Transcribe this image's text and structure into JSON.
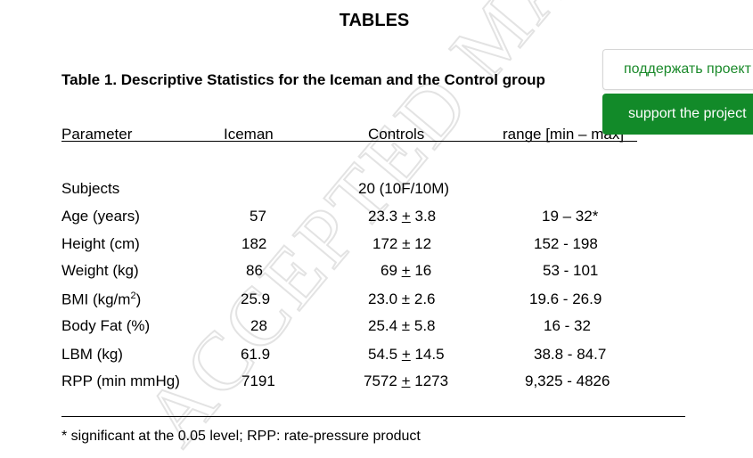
{
  "page": {
    "title": "TABLES",
    "caption": "Table 1. Descriptive Statistics for the Iceman and the Control group",
    "watermark": "ACCEPTED MANUSCRIPT",
    "footnote": "* significant at the 0.05 level; RPP: rate-pressure product"
  },
  "table": {
    "headers": {
      "parameter": "Parameter",
      "iceman": "Iceman",
      "controls": "Controls",
      "range": "range [min – max]"
    },
    "rows": [
      {
        "parameter": "Subjects",
        "iceman": "",
        "controls": "20 (10F/10M)",
        "range": ""
      },
      {
        "parameter": "Age (years)",
        "iceman": "57",
        "controls_mean": "23.3",
        "controls_pm": "+",
        "controls_sd": "3.8",
        "range": "19 – 32*"
      },
      {
        "parameter": "Height (cm)",
        "iceman": "182",
        "controls": "172 ± 12",
        "range": "152 - 198"
      },
      {
        "parameter": "Weight (kg)",
        "iceman": "86",
        "controls_mean": "69",
        "controls_pm": "+",
        "controls_sd": "16",
        "range": "53 - 101"
      },
      {
        "parameter": "BMI (kg/m",
        "parameter_sup": "2",
        "parameter_suffix": ")",
        "iceman": "25.9",
        "controls": "23.0 ± 2.6",
        "range": "19.6 - 26.9"
      },
      {
        "parameter": "Body Fat (%)",
        "iceman": "28",
        "controls": "25.4 ± 5.8",
        "range": "16 - 32"
      },
      {
        "parameter": "LBM (kg)",
        "iceman": "61.9",
        "controls_mean": "54.5",
        "controls_pm": "+",
        "controls_sd": "14.5",
        "range": "38.8 - 84.7"
      },
      {
        "parameter": "RPP (min mmHg)",
        "iceman": "7191",
        "controls_mean": "7572",
        "controls_pm": "+",
        "controls_sd": "1273",
        "range": "9,325 - 4826"
      }
    ]
  },
  "support_widget": {
    "ru_label": "поддержать проект",
    "en_label": "support the project",
    "ru_color": "#1b8a2b",
    "en_bg": "#128a29"
  }
}
